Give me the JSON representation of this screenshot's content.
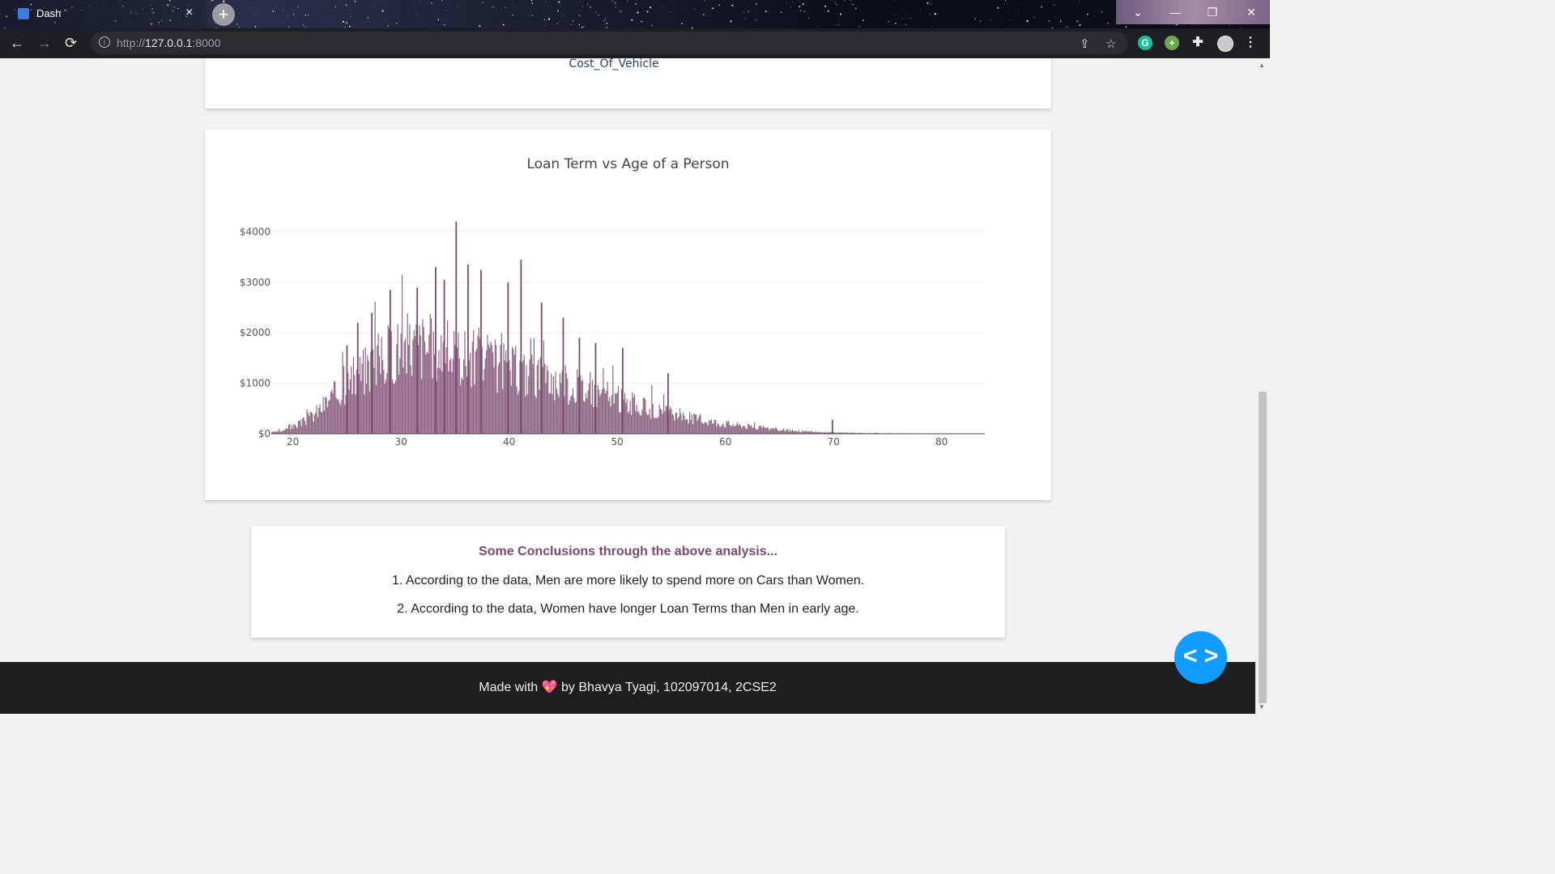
{
  "browser": {
    "tab_title": "Dash",
    "tab_close": "×",
    "new_tab": "+",
    "url_scheme": "http://",
    "url_host": "127.0.0.1",
    "url_port": ":8000",
    "back": "←",
    "forward": "→",
    "reload": "⟳"
  },
  "prev_chart": {
    "xlabel": "Cost_Of_Vehicle"
  },
  "chart": {
    "title": "Loan Term vs Age of a Person"
  },
  "chart_data": {
    "type": "bar",
    "title": "Loan Term vs Age of a Person",
    "xlabel": "",
    "ylabel": "",
    "xlim": [
      18,
      84
    ],
    "ylim": [
      0,
      4200
    ],
    "x_ticks": [
      20,
      30,
      40,
      50,
      60,
      70,
      80
    ],
    "y_ticks": [
      0,
      1000,
      2000,
      3000,
      4000
    ],
    "y_tick_labels": [
      "$0",
      "$1000",
      "$2000",
      "$3000",
      "$4000"
    ],
    "bar_color": "#7a4a6e",
    "grid": true,
    "envelope": {
      "x": [
        18,
        19,
        20,
        21,
        22,
        23,
        24,
        25,
        26,
        27,
        28,
        29,
        30,
        31,
        32,
        33,
        34,
        35,
        36,
        37,
        38,
        39,
        40,
        41,
        42,
        43,
        44,
        45,
        46,
        47,
        48,
        49,
        50,
        51,
        52,
        53,
        54,
        55,
        56,
        57,
        58,
        59,
        60,
        61,
        62,
        63,
        64,
        65,
        66,
        67,
        68,
        69,
        70,
        71,
        72,
        73,
        74,
        75,
        76,
        77,
        78,
        79,
        80,
        81,
        82,
        83
      ],
      "y": [
        30,
        60,
        150,
        260,
        420,
        650,
        850,
        1050,
        1250,
        1450,
        1600,
        1750,
        1850,
        1900,
        1900,
        1850,
        1800,
        1700,
        1650,
        1600,
        1550,
        1450,
        1400,
        1350,
        1250,
        1200,
        1150,
        1100,
        1000,
        950,
        900,
        820,
        750,
        650,
        600,
        520,
        470,
        420,
        380,
        330,
        290,
        250,
        220,
        190,
        160,
        130,
        110,
        90,
        70,
        55,
        45,
        35,
        28,
        22,
        18,
        14,
        12,
        10,
        8,
        7,
        6,
        5,
        4,
        4,
        3,
        3
      ]
    },
    "peaks": [
      {
        "x": 35.1,
        "y": 4200
      },
      {
        "x": 41.1,
        "y": 3450
      },
      {
        "x": 33.2,
        "y": 3300
      },
      {
        "x": 36.2,
        "y": 3350
      },
      {
        "x": 39.9,
        "y": 3000
      },
      {
        "x": 29.0,
        "y": 2850
      },
      {
        "x": 31.5,
        "y": 2900
      },
      {
        "x": 34.0,
        "y": 3050
      },
      {
        "x": 37.4,
        "y": 3250
      },
      {
        "x": 43.0,
        "y": 2600
      },
      {
        "x": 45.0,
        "y": 2300
      },
      {
        "x": 46.5,
        "y": 1900
      },
      {
        "x": 48.0,
        "y": 1800
      },
      {
        "x": 50.5,
        "y": 1700
      },
      {
        "x": 54.7,
        "y": 1200
      },
      {
        "x": 26.0,
        "y": 2200
      },
      {
        "x": 27.3,
        "y": 2400
      },
      {
        "x": 25.0,
        "y": 1750
      },
      {
        "x": 69.9,
        "y": 280
      }
    ]
  },
  "conclusions": {
    "heading": "Some Conclusions through the above analysis...",
    "item1": "1. According to the data, Men are more likely to spend more on Cars than Women.",
    "item2": "2. According to the data, Women have longer Loan Terms than Men in early age."
  },
  "footer": {
    "prefix": "Made with",
    "heart": "💖",
    "suffix": "by Bhavya Tyagi, 102097014, 2CSE2"
  },
  "devtools": {
    "label": "< >"
  }
}
